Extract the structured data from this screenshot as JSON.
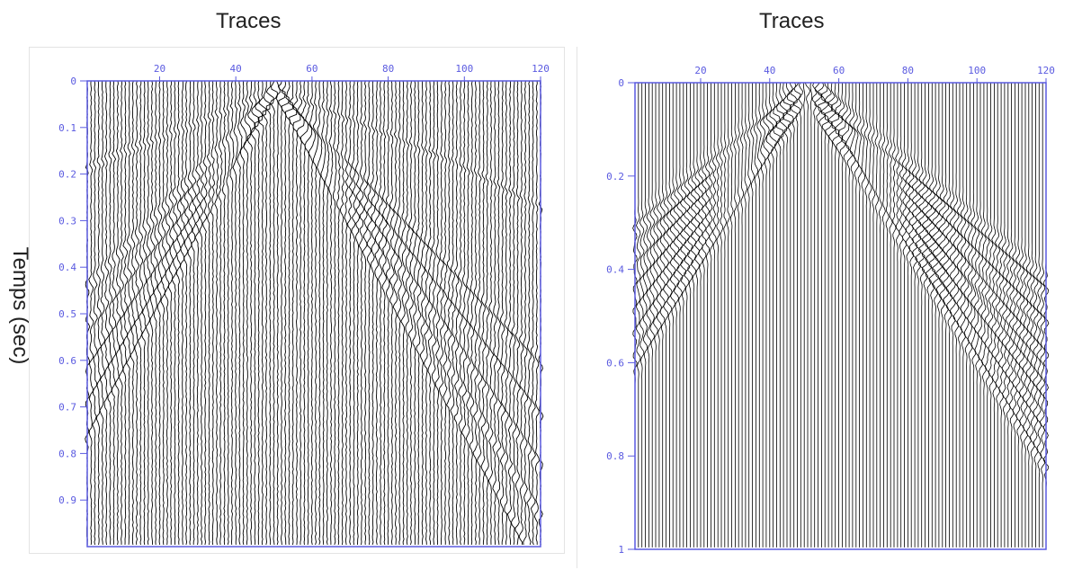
{
  "colors": {
    "axis": "#5a5ae0",
    "ink": "#000000",
    "gap": "#ffffff",
    "title": "#222222"
  },
  "titles": {
    "left": "Traces",
    "right": "Traces"
  },
  "y_axis_label": "Temps (sec)",
  "chart_data": [
    {
      "type": "wiggle",
      "title": "Traces",
      "xlabel": "Traces",
      "ylabel": "Temps (sec)",
      "x_ticks": [
        "20",
        "40",
        "60",
        "80",
        "100",
        "120"
      ],
      "x_tick_values": [
        20,
        40,
        60,
        80,
        100,
        120
      ],
      "y_ticks": [
        "0",
        "0.1",
        "0.2",
        "0.3",
        "0.4",
        "0.5",
        "0.6",
        "0.7",
        "0.8",
        "0.9"
      ],
      "y_tick_values": [
        0,
        0.1,
        0.2,
        0.3,
        0.4,
        0.5,
        0.6,
        0.7,
        0.8,
        0.9
      ],
      "xlim": [
        1,
        120
      ],
      "ylim": [
        0,
        1.0
      ],
      "trace_count": 120,
      "source_trace": 51,
      "content": "raw shot gather with direct arrival, ground roll and noise"
    },
    {
      "type": "wiggle",
      "title": "Traces",
      "xlabel": "Traces",
      "x_ticks": [
        "20",
        "40",
        "60",
        "80",
        "100",
        "120"
      ],
      "x_tick_values": [
        20,
        40,
        60,
        80,
        100,
        120
      ],
      "y_ticks": [
        "0",
        "0.2",
        "0.4",
        "0.6",
        "0.8",
        "1"
      ],
      "y_tick_values": [
        0,
        0.2,
        0.4,
        0.6,
        0.8,
        1.0
      ],
      "xlim": [
        1,
        120
      ],
      "ylim": [
        0,
        1.0
      ],
      "trace_count": 120,
      "source_trace": 51,
      "content": "modelled / muted gather, V-shaped event fan"
    }
  ]
}
